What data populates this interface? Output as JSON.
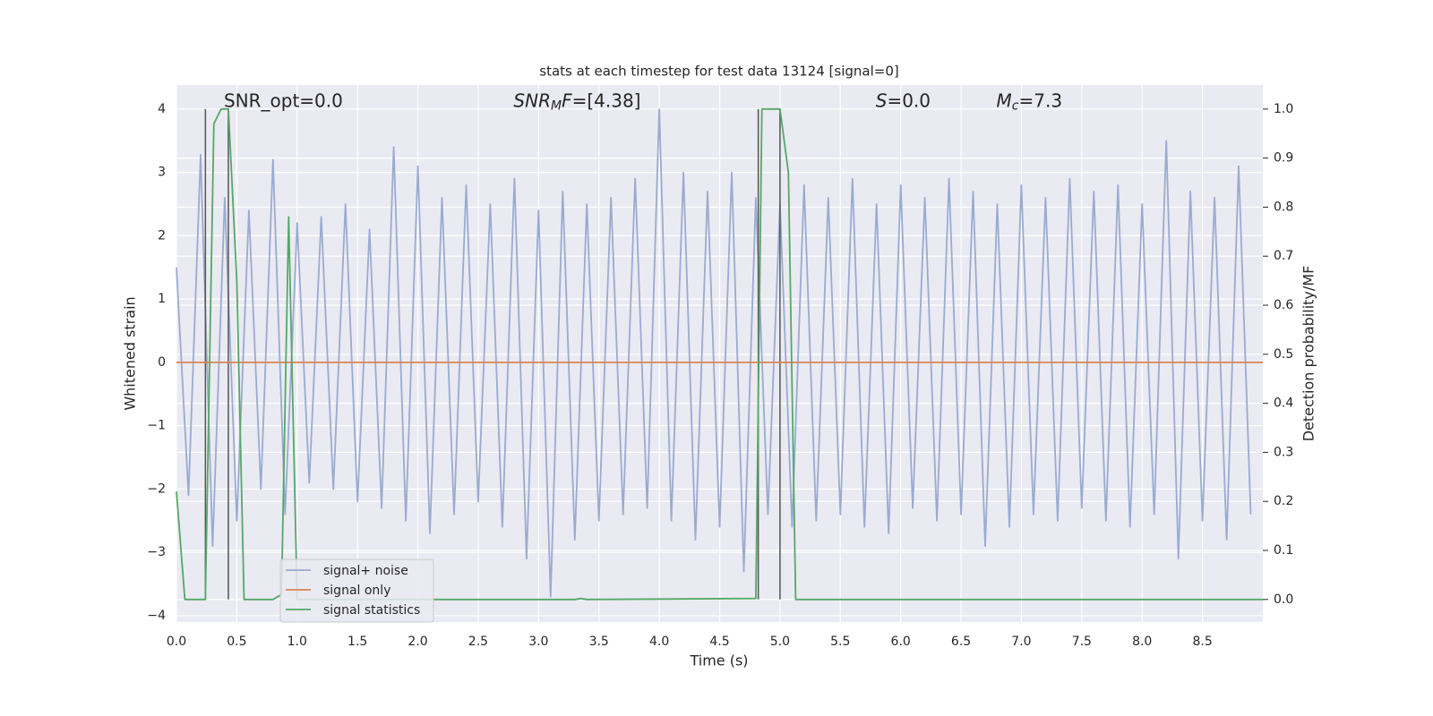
{
  "chart_data": {
    "type": "line",
    "title": "stats at each timestep for test data 13124 [signal=0]",
    "x_label": "Time (s)",
    "y_label": "Whitened strain",
    "y2_label": "Detection probability/MF",
    "xlim": [
      0,
      9.0
    ],
    "ylim": [
      -4.1,
      4.38
    ],
    "y2lim": [
      -0.046,
      1.049
    ],
    "xticks": [
      {
        "value": 0,
        "label": "0.0"
      },
      0.5,
      {
        "value": 1,
        "label": "1.0"
      },
      1.5,
      {
        "value": 2,
        "label": "2.0"
      },
      2.5,
      {
        "value": 3,
        "label": "3.0"
      },
      3.5,
      {
        "value": 4,
        "label": "4.0"
      },
      4.5,
      {
        "value": 5,
        "label": "5.0"
      },
      5.5,
      {
        "value": 6,
        "label": "6.0"
      },
      6.5,
      {
        "value": 7,
        "label": "7.0"
      },
      7.5,
      {
        "value": 8,
        "label": "8.0"
      },
      8.5
    ],
    "yticks": [
      {
        "value": -4,
        "label": "−4"
      },
      {
        "value": -3,
        "label": "−3"
      },
      {
        "value": -2,
        "label": "−2"
      },
      {
        "value": -1,
        "label": "−1"
      },
      0,
      1,
      2,
      3,
      4
    ],
    "y2ticks": [
      {
        "value": 0,
        "label": "0.0"
      },
      0.1,
      0.2,
      0.3,
      0.4,
      0.5,
      0.6,
      0.7,
      0.8,
      0.9,
      {
        "value": 1,
        "label": "1.0"
      }
    ],
    "grid": true,
    "legend": "lower left",
    "annotations": [
      {
        "parts": [
          {
            "text": "SNR_opt=0.0"
          }
        ]
      },
      {
        "parts": [
          {
            "text": "SNR",
            "italic": true
          },
          {
            "text": "M",
            "italic": true,
            "sub": true
          },
          {
            "text": "F",
            "italic": true
          },
          {
            "text": "=[4.38]"
          }
        ]
      },
      {
        "parts": [
          {
            "text": "S",
            "italic": true
          },
          {
            "text": "=0.0"
          }
        ]
      },
      {
        "parts": [
          {
            "text": "M",
            "italic": true
          },
          {
            "text": "c",
            "italic": true,
            "sub": true
          },
          {
            "text": "=7.3"
          }
        ]
      }
    ],
    "annotation_x": [
      0.2,
      2.6,
      5.6,
      6.6
    ],
    "annotation_y": 1.015,
    "vlines": {
      "x": [
        0.24,
        0.43,
        4.82,
        5.0
      ],
      "ymin": 0,
      "ymax": 1,
      "color": "#555555"
    },
    "series": [
      {
        "name": "signal+ noise",
        "color": "#9aabd0",
        "axis": "y",
        "x": [
          0,
          0.1,
          0.2,
          0.3,
          0.4,
          0.5,
          0.6,
          0.7,
          0.8,
          0.9,
          1.0,
          1.1,
          1.2,
          1.3,
          1.4,
          1.5,
          1.6,
          1.7,
          1.8,
          1.9,
          2.0,
          2.1,
          2.2,
          2.3,
          2.4,
          2.5,
          2.6,
          2.7,
          2.8,
          2.9,
          3.0,
          3.1,
          3.2,
          3.3,
          3.4,
          3.5,
          3.6,
          3.7,
          3.8,
          3.9,
          4.0,
          4.1,
          4.2,
          4.3,
          4.4,
          4.5,
          4.6,
          4.7,
          4.8,
          4.9,
          5.0,
          5.1,
          5.2,
          5.3,
          5.4,
          5.5,
          5.6,
          5.7,
          5.8,
          5.9,
          6.0,
          6.1,
          6.2,
          6.3,
          6.4,
          6.5,
          6.6,
          6.7,
          6.8,
          6.9,
          7.0,
          7.1,
          7.2,
          7.3,
          7.4,
          7.5,
          7.6,
          7.7,
          7.8,
          7.9,
          8.0,
          8.1,
          8.2,
          8.3,
          8.4,
          8.5,
          8.6,
          8.7,
          8.8,
          8.9
        ],
        "values": [
          1.5,
          -2.1,
          3.28,
          -2.9,
          2.6,
          -2.5,
          2.4,
          -2.0,
          3.2,
          -2.4,
          2.2,
          -1.9,
          2.3,
          -2.0,
          2.5,
          -2.2,
          2.1,
          -2.3,
          3.4,
          -2.5,
          3.1,
          -2.7,
          2.6,
          -2.4,
          2.8,
          -2.2,
          2.5,
          -2.6,
          2.9,
          -3.1,
          2.4,
          -3.7,
          2.7,
          -2.8,
          2.5,
          -2.5,
          2.6,
          -2.4,
          2.9,
          -2.3,
          4.0,
          -2.5,
          3.0,
          -2.8,
          2.7,
          -2.6,
          3.0,
          -3.3,
          2.6,
          -2.4,
          2.5,
          -2.6,
          2.8,
          -2.5,
          2.6,
          -2.4,
          2.9,
          -2.6,
          2.5,
          -2.7,
          2.8,
          -2.3,
          2.6,
          -2.5,
          2.9,
          -2.4,
          2.7,
          -2.9,
          2.5,
          -2.6,
          2.8,
          -2.4,
          2.6,
          -2.5,
          2.9,
          -2.3,
          2.7,
          -2.5,
          2.8,
          -2.6,
          2.5,
          -2.4,
          3.5,
          -3.1,
          2.7,
          -2.5,
          2.6,
          -2.8,
          3.1,
          -2.4
        ]
      },
      {
        "name": "signal only",
        "color": "#dd8452",
        "axis": "y",
        "x": [
          0,
          9.0
        ],
        "values": [
          0,
          0
        ]
      },
      {
        "name": "signal statistics",
        "color": "#55a868",
        "axis": "y2",
        "x": [
          0,
          0.07,
          0.24,
          0.31,
          0.37,
          0.43,
          0.5,
          0.56,
          0.8,
          0.87,
          0.93,
          1.0,
          3.3,
          3.35,
          3.4,
          4.8,
          4.85,
          5.0,
          5.07,
          5.13,
          9.0
        ],
        "values": [
          0.22,
          0,
          0,
          0.97,
          1.0,
          1.0,
          0.65,
          0,
          0,
          0.01,
          0.78,
          0,
          0,
          0.002,
          0,
          0.002,
          1.0,
          1.0,
          0.87,
          0,
          0
        ]
      }
    ]
  }
}
